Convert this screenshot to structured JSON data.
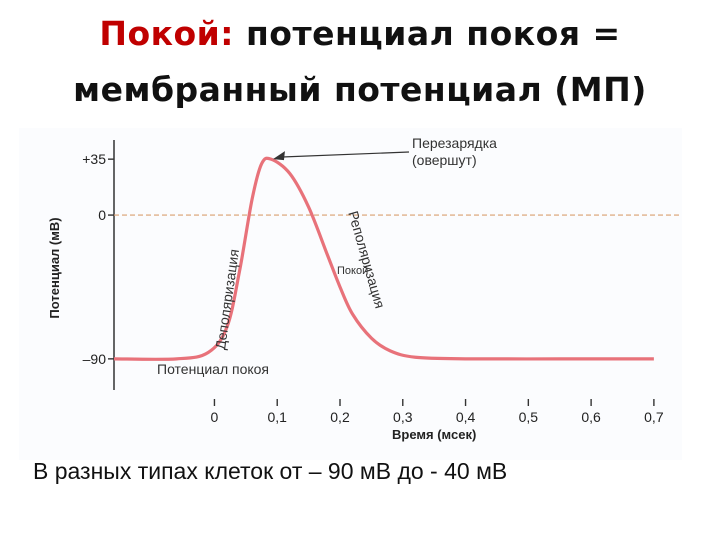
{
  "title": {
    "line1_accent": "Покой:",
    "line1_rest": " потенциал покоя =",
    "line2": "мембранный потенциал (МП)"
  },
  "caption": "В разных типах клеток от – 90 мВ до - 40 мВ",
  "colors": {
    "accent": "#c00000",
    "curve": "#e8727a",
    "zero_line": "#d9a070",
    "text": "#111111"
  },
  "chart_data": {
    "type": "line",
    "xlabel": "Время (мсек)",
    "ylabel": "Потенциал (мВ)",
    "x_ticks": [
      "0",
      "0,1",
      "0,2",
      "0,3",
      "0,4",
      "0,5",
      "0,6",
      "0,7"
    ],
    "y_ticks": [
      "+35",
      "0",
      "–90"
    ],
    "xlim": [
      -0.16,
      0.74
    ],
    "ylim": [
      -112,
      52
    ],
    "series": [
      {
        "x": [
          -0.16,
          -0.06,
          -0.01,
          0.02,
          0.04,
          0.06,
          0.075,
          0.09,
          0.12,
          0.15,
          0.18,
          0.2,
          0.22,
          0.25,
          0.28,
          0.32,
          0.4,
          0.55,
          0.7
        ],
        "y": [
          -90,
          -90,
          -86,
          -70,
          -35,
          10,
          32,
          35,
          26,
          5,
          -25,
          -45,
          -62,
          -77,
          -85,
          -89,
          -90,
          -90,
          -90
        ]
      }
    ],
    "annotations": [
      "Перезарядка",
      "(овершут)",
      "Деполяризация",
      "Реполяризация",
      "Потенциал покоя",
      "Покой"
    ],
    "grid": false,
    "legend": "none"
  }
}
